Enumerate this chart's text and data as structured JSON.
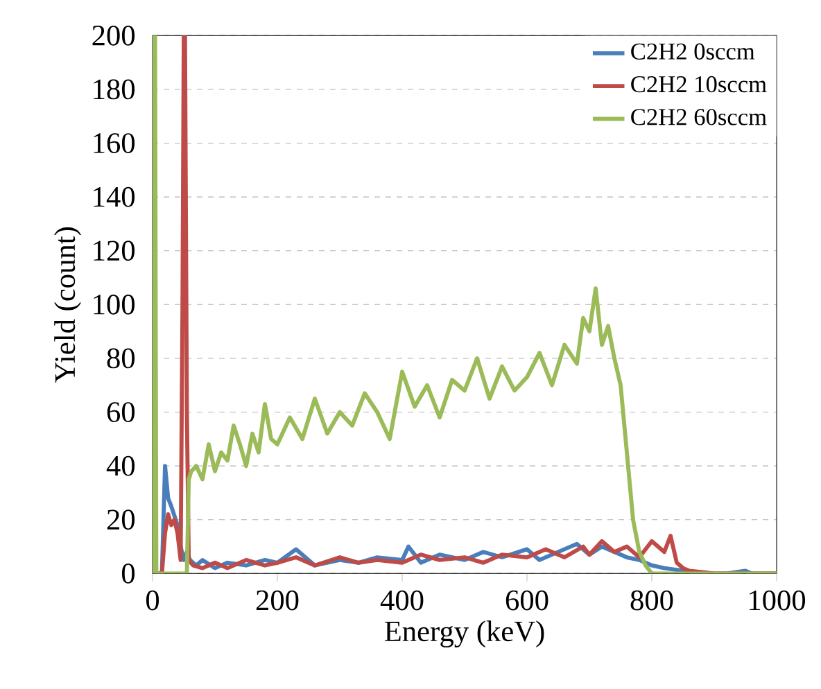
{
  "chart_data": {
    "type": "line",
    "xlabel": "Energy (keV)",
    "ylabel": "Yield (count)",
    "xlim": [
      0,
      1000
    ],
    "ylim": [
      0,
      200
    ],
    "xticks": [
      0,
      200,
      400,
      600,
      800,
      1000
    ],
    "yticks": [
      0,
      20,
      40,
      60,
      80,
      100,
      120,
      140,
      160,
      180,
      200
    ],
    "grid": "y",
    "legend": "top right",
    "marker": "none",
    "line_style": "solid",
    "series": [
      {
        "name": "C2H2 0sccm",
        "color": "#4a7ebb",
        "x": [
          0,
          15,
          20,
          25,
          30,
          40,
          45,
          50,
          55,
          60,
          70,
          80,
          100,
          120,
          150,
          180,
          200,
          230,
          260,
          300,
          330,
          360,
          400,
          410,
          430,
          460,
          500,
          530,
          560,
          600,
          620,
          650,
          680,
          700,
          720,
          740,
          760,
          780,
          800,
          820,
          850,
          880,
          920,
          950,
          960,
          1000
        ],
        "values": [
          0,
          0,
          40,
          28,
          25,
          18,
          10,
          5,
          8,
          5,
          3,
          5,
          2,
          4,
          3,
          5,
          4,
          9,
          3,
          5,
          4,
          6,
          5,
          10,
          4,
          7,
          5,
          8,
          6,
          9,
          5,
          8,
          11,
          7,
          10,
          8,
          6,
          5,
          3,
          2,
          1,
          0,
          0,
          1,
          0,
          0
        ]
      },
      {
        "name": "C2H2 10sccm",
        "color": "#be4b48",
        "x": [
          0,
          15,
          20,
          25,
          30,
          35,
          40,
          45,
          48,
          50,
          52,
          55,
          58,
          65,
          80,
          100,
          120,
          150,
          180,
          200,
          230,
          260,
          300,
          330,
          360,
          400,
          430,
          460,
          500,
          530,
          560,
          600,
          630,
          660,
          690,
          700,
          720,
          740,
          760,
          780,
          800,
          820,
          830,
          840,
          850,
          860,
          900,
          1000
        ],
        "values": [
          0,
          0,
          15,
          22,
          18,
          20,
          15,
          5,
          100,
          200,
          200,
          60,
          5,
          3,
          2,
          4,
          2,
          5,
          3,
          4,
          6,
          3,
          6,
          4,
          5,
          4,
          7,
          5,
          6,
          4,
          7,
          6,
          9,
          6,
          10,
          7,
          12,
          8,
          10,
          6,
          12,
          8,
          14,
          4,
          2,
          1,
          0,
          0
        ]
      },
      {
        "name": "C2H2 60sccm",
        "color": "#9bbb59",
        "x": [
          0,
          2,
          4,
          6,
          55,
          58,
          62,
          70,
          80,
          90,
          100,
          110,
          120,
          130,
          140,
          150,
          160,
          170,
          180,
          190,
          200,
          220,
          240,
          260,
          280,
          300,
          320,
          340,
          360,
          380,
          400,
          420,
          440,
          460,
          480,
          500,
          520,
          540,
          560,
          580,
          600,
          620,
          640,
          660,
          680,
          690,
          700,
          710,
          720,
          730,
          740,
          750,
          760,
          770,
          780,
          790,
          800,
          1000
        ],
        "values": [
          0,
          200,
          200,
          0,
          0,
          35,
          38,
          40,
          35,
          48,
          38,
          45,
          42,
          55,
          48,
          40,
          52,
          45,
          63,
          50,
          48,
          58,
          50,
          65,
          52,
          60,
          55,
          67,
          60,
          50,
          75,
          62,
          70,
          58,
          72,
          68,
          80,
          65,
          77,
          68,
          73,
          82,
          70,
          85,
          78,
          95,
          90,
          106,
          85,
          92,
          80,
          70,
          45,
          20,
          8,
          3,
          0,
          0
        ]
      }
    ]
  }
}
